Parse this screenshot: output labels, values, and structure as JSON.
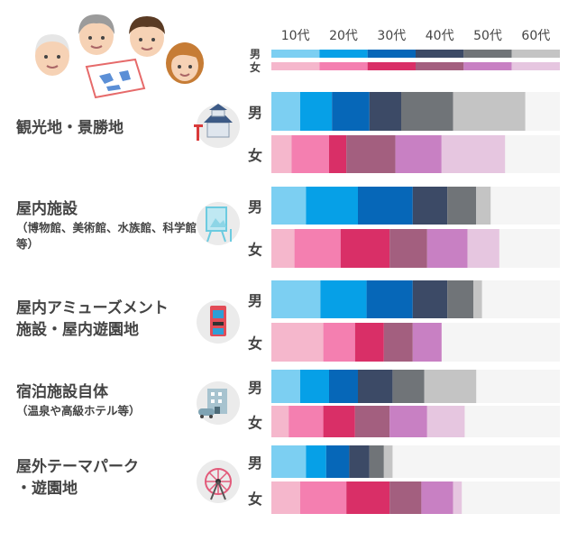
{
  "chart_data": {
    "type": "bar",
    "stacked": true,
    "normalized": true,
    "legend": {
      "age_labels": [
        "10代",
        "20代",
        "30代",
        "40代",
        "50代",
        "60代"
      ],
      "gender_labels": [
        "男",
        "女"
      ],
      "placement": "top"
    },
    "colors": {
      "male": [
        "#7ccff2",
        "#06a0e7",
        "#0667b8",
        "#3c4a66",
        "#707478",
        "#c4c4c4"
      ],
      "female": [
        "#f5b7cc",
        "#f47fb0",
        "#d92f67",
        "#a35f7f",
        "#c880c3",
        "#e6c6e0"
      ],
      "remainder": "#f5f5f5"
    },
    "categories": [
      {
        "name": "観光地・景勝地",
        "sub": "",
        "icon": "castle-icon",
        "male": [
          0.1,
          0.21,
          0.34,
          0.45,
          0.63,
          0.88
        ],
        "female": [
          0.07,
          0.2,
          0.26,
          0.43,
          0.59,
          0.81
        ]
      },
      {
        "name": "屋内施設",
        "sub": "（博物館、美術館、水族館、科学館等）",
        "icon": "museum-icon",
        "male": [
          0.12,
          0.3,
          0.49,
          0.61,
          0.71,
          0.76
        ],
        "female": [
          0.08,
          0.24,
          0.41,
          0.54,
          0.68,
          0.79
        ]
      },
      {
        "name": "屋内アミューズメント",
        "sub": "施設・屋内遊園地",
        "icon": "arcade-icon",
        "male": [
          0.17,
          0.33,
          0.49,
          0.61,
          0.7,
          0.73
        ],
        "female": [
          0.18,
          0.29,
          0.39,
          0.49,
          0.59,
          0.59
        ]
      },
      {
        "name": "宿泊施設自体",
        "sub": "（温泉や高級ホテル等）",
        "icon": "hotel-icon",
        "male": [
          0.1,
          0.2,
          0.3,
          0.42,
          0.53,
          0.71
        ],
        "female": [
          0.06,
          0.18,
          0.29,
          0.41,
          0.54,
          0.67
        ]
      },
      {
        "name": "屋外テーマパーク",
        "sub": "・遊園地",
        "icon": "ferris-wheel-icon",
        "male": [
          0.12,
          0.19,
          0.27,
          0.34,
          0.39,
          0.42
        ],
        "female": [
          0.1,
          0.26,
          0.41,
          0.52,
          0.63,
          0.66
        ]
      }
    ]
  }
}
